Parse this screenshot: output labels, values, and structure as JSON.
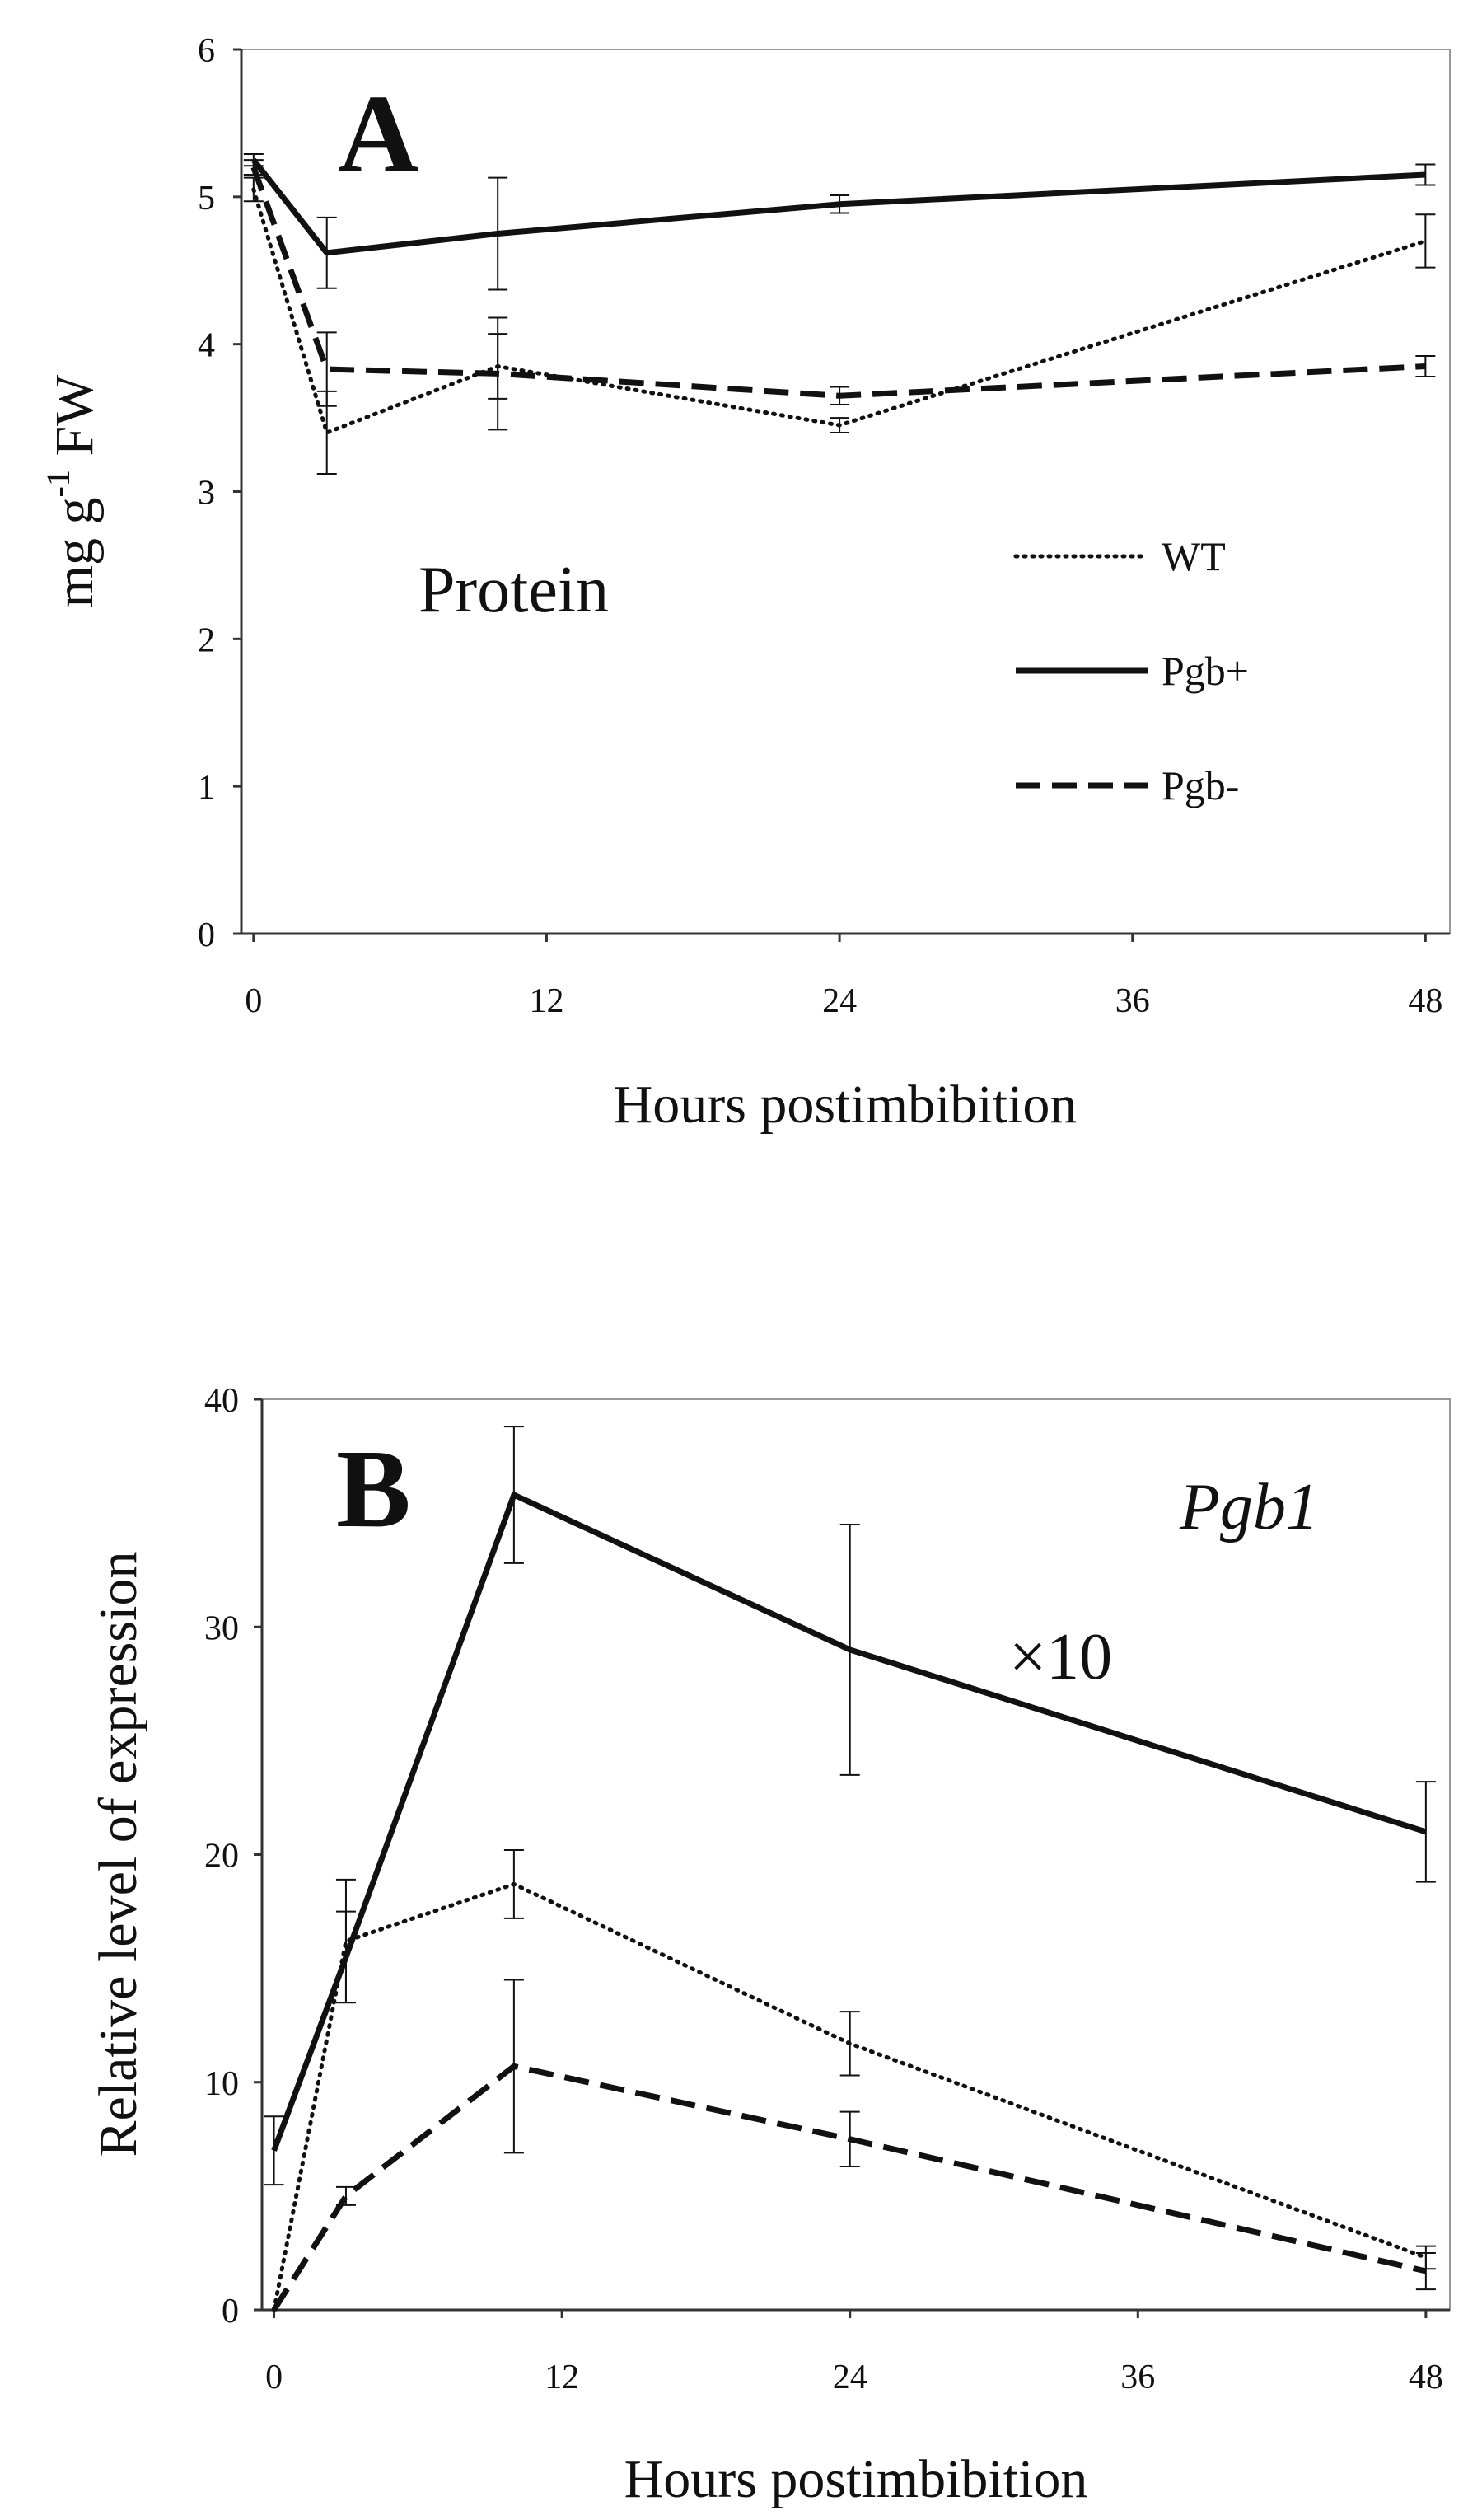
{
  "figure": {
    "background": "#ffffff",
    "ink": "#111111"
  },
  "chart_data": [
    {
      "type": "line",
      "panel": "A",
      "annotation": "Protein",
      "xlabel": "Hours postimbibition",
      "ylabel_main": "mg g",
      "ylabel_sup": "-1",
      "ylabel_tail": " FW",
      "xlim": [
        -0.5,
        49
      ],
      "ylim": [
        0,
        6
      ],
      "xticks": [
        0,
        12,
        24,
        36,
        48
      ],
      "yticks": [
        0,
        1,
        2,
        3,
        4,
        5,
        6
      ],
      "grid": false,
      "legend_position": "center-right",
      "x": [
        0,
        3,
        10,
        24,
        48
      ],
      "series": [
        {
          "name": "WT",
          "style": "dotted",
          "values": [
            5.05,
            3.4,
            3.85,
            3.45,
            4.7
          ],
          "errors": [
            0.08,
            0.28,
            0.22,
            0.05,
            0.18
          ]
        },
        {
          "name": "Pgb+",
          "style": "solid",
          "values": [
            5.25,
            4.62,
            4.75,
            4.95,
            5.15
          ],
          "errors": [
            0.04,
            0.24,
            0.38,
            0.06,
            0.07
          ]
        },
        {
          "name": "Pgb-",
          "style": "dashed",
          "values": [
            5.2,
            3.83,
            3.8,
            3.65,
            3.85
          ],
          "errors": [
            0.05,
            0.25,
            0.38,
            0.06,
            0.07
          ]
        }
      ]
    },
    {
      "type": "line",
      "panel": "B",
      "annotation": "Pgb1",
      "annotation2": "×10",
      "xlabel": "Hours postimbibition",
      "ylabel": "Relative level of expression",
      "xlim": [
        -0.5,
        49
      ],
      "ylim": [
        0,
        40
      ],
      "xticks": [
        0,
        12,
        24,
        36,
        48
      ],
      "yticks": [
        0,
        10,
        20,
        30,
        40
      ],
      "grid": false,
      "x": [
        0,
        3,
        10,
        24,
        48
      ],
      "series": [
        {
          "name": "WT",
          "style": "dotted",
          "values": [
            0.0,
            16.2,
            18.7,
            11.7,
            2.3
          ],
          "errors": [
            0.0,
            2.7,
            1.5,
            1.4,
            0.5
          ]
        },
        {
          "name": "Pgb+",
          "style": "solid",
          "values": [
            7.0,
            15.5,
            35.8,
            29.0,
            21.0
          ],
          "errors": [
            1.5,
            2.0,
            3.0,
            5.5,
            2.2
          ]
        },
        {
          "name": "Pgb-",
          "style": "dashed",
          "values": [
            0.0,
            5.0,
            10.7,
            7.5,
            1.7
          ],
          "errors": [
            0.0,
            0.4,
            3.8,
            1.2,
            0.8
          ]
        }
      ]
    }
  ]
}
